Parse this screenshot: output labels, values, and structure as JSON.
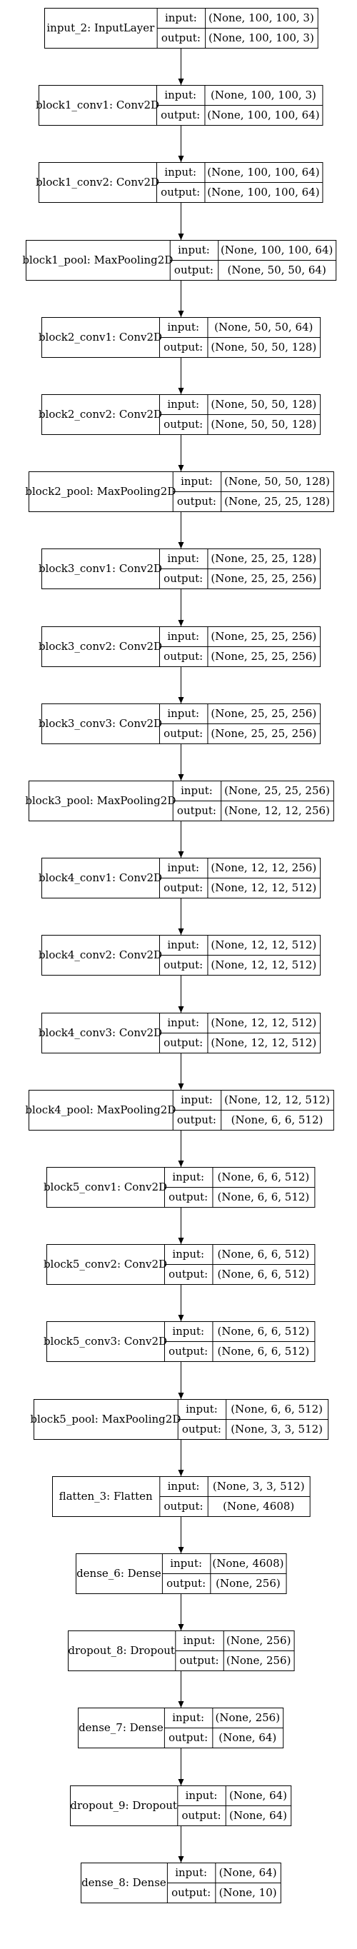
{
  "model_graph": {
    "layers": [
      {
        "name": "input_2: InputLayer",
        "input_key": "input:",
        "input": "(None, 100, 100, 3)",
        "output_key": "output:",
        "output": "(None, 100, 100, 3)"
      },
      {
        "name": "block1_conv1: Conv2D",
        "input_key": "input:",
        "input": "(None, 100, 100, 3)",
        "output_key": "output:",
        "output": "(None, 100, 100, 64)"
      },
      {
        "name": "block1_conv2: Conv2D",
        "input_key": "input:",
        "input": "(None, 100, 100, 64)",
        "output_key": "output:",
        "output": "(None, 100, 100, 64)"
      },
      {
        "name": "block1_pool: MaxPooling2D",
        "input_key": "input:",
        "input": "(None, 100, 100, 64)",
        "output_key": "output:",
        "output": "(None, 50, 50, 64)"
      },
      {
        "name": "block2_conv1: Conv2D",
        "input_key": "input:",
        "input": "(None, 50, 50, 64)",
        "output_key": "output:",
        "output": "(None, 50, 50, 128)"
      },
      {
        "name": "block2_conv2: Conv2D",
        "input_key": "input:",
        "input": "(None, 50, 50, 128)",
        "output_key": "output:",
        "output": "(None, 50, 50, 128)"
      },
      {
        "name": "block2_pool: MaxPooling2D",
        "input_key": "input:",
        "input": "(None, 50, 50, 128)",
        "output_key": "output:",
        "output": "(None, 25, 25, 128)"
      },
      {
        "name": "block3_conv1: Conv2D",
        "input_key": "input:",
        "input": "(None, 25, 25, 128)",
        "output_key": "output:",
        "output": "(None, 25, 25, 256)"
      },
      {
        "name": "block3_conv2: Conv2D",
        "input_key": "input:",
        "input": "(None, 25, 25, 256)",
        "output_key": "output:",
        "output": "(None, 25, 25, 256)"
      },
      {
        "name": "block3_conv3: Conv2D",
        "input_key": "input:",
        "input": "(None, 25, 25, 256)",
        "output_key": "output:",
        "output": "(None, 25, 25, 256)"
      },
      {
        "name": "block3_pool: MaxPooling2D",
        "input_key": "input:",
        "input": "(None, 25, 25, 256)",
        "output_key": "output:",
        "output": "(None, 12, 12, 256)"
      },
      {
        "name": "block4_conv1: Conv2D",
        "input_key": "input:",
        "input": "(None, 12, 12, 256)",
        "output_key": "output:",
        "output": "(None, 12, 12, 512)"
      },
      {
        "name": "block4_conv2: Conv2D",
        "input_key": "input:",
        "input": "(None, 12, 12, 512)",
        "output_key": "output:",
        "output": "(None, 12, 12, 512)"
      },
      {
        "name": "block4_conv3: Conv2D",
        "input_key": "input:",
        "input": "(None, 12, 12, 512)",
        "output_key": "output:",
        "output": "(None, 12, 12, 512)"
      },
      {
        "name": "block4_pool: MaxPooling2D",
        "input_key": "input:",
        "input": "(None, 12, 12, 512)",
        "output_key": "output:",
        "output": "(None, 6, 6, 512)"
      },
      {
        "name": "block5_conv1: Conv2D",
        "input_key": "input:",
        "input": "(None, 6, 6, 512)",
        "output_key": "output:",
        "output": "(None, 6, 6, 512)"
      },
      {
        "name": "block5_conv2: Conv2D",
        "input_key": "input:",
        "input": "(None, 6, 6, 512)",
        "output_key": "output:",
        "output": "(None, 6, 6, 512)"
      },
      {
        "name": "block5_conv3: Conv2D",
        "input_key": "input:",
        "input": "(None, 6, 6, 512)",
        "output_key": "output:",
        "output": "(None, 6, 6, 512)"
      },
      {
        "name": "block5_pool: MaxPooling2D",
        "input_key": "input:",
        "input": "(None, 6, 6, 512)",
        "output_key": "output:",
        "output": "(None, 3, 3, 512)"
      },
      {
        "name": "flatten_3: Flatten",
        "input_key": "input:",
        "input": "(None, 3, 3, 512)",
        "output_key": "output:",
        "output": "(None, 4608)"
      },
      {
        "name": "dense_6: Dense",
        "input_key": "input:",
        "input": "(None, 4608)",
        "output_key": "output:",
        "output": "(None, 256)"
      },
      {
        "name": "dropout_8: Dropout",
        "input_key": "input:",
        "input": "(None, 256)",
        "output_key": "output:",
        "output": "(None, 256)"
      },
      {
        "name": "dense_7: Dense",
        "input_key": "input:",
        "input": "(None, 256)",
        "output_key": "output:",
        "output": "(None, 64)"
      },
      {
        "name": "dropout_9: Dropout",
        "input_key": "input:",
        "input": "(None, 64)",
        "output_key": "output:",
        "output": "(None, 64)"
      },
      {
        "name": "dense_8: Dense",
        "input_key": "input:",
        "input": "(None, 64)",
        "output_key": "output:",
        "output": "(None, 10)"
      }
    ]
  },
  "colors": {
    "background": "#ffffff",
    "stroke": "#000000",
    "text": "#000000"
  }
}
